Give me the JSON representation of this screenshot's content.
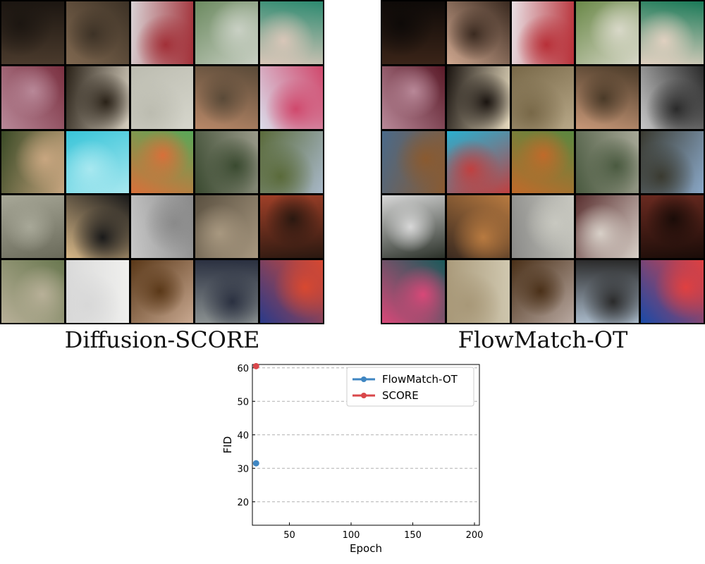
{
  "panels": [
    {
      "caption": "Diffusion-SCORE",
      "tiles": [
        [
          "#4a3a2c",
          "#1c1611"
        ],
        [
          "#806850",
          "#3d3226"
        ],
        [
          "#d8d2d4",
          "#a23038"
        ],
        [
          "#6c8a60",
          "#c9d0c4"
        ],
        [
          "#2c8a70",
          "#d8c6b8"
        ],
        [
          "#7a3040",
          "#b88898"
        ],
        [
          "#d8d0c0",
          "#2a2218"
        ],
        [
          "#d6d6cc",
          "#bcbcb0"
        ],
        [
          "#b88868",
          "#5a4a38"
        ],
        [
          "#dadcea",
          "#d0486c"
        ],
        [
          "#3a4a26",
          "#c8a680"
        ],
        [
          "#38c4d8",
          "#a8e8f0"
        ],
        [
          "#58a858",
          "#d8703a"
        ],
        [
          "#9a9a8a",
          "#3a4a30"
        ],
        [
          "#a8b8c8",
          "#5a6a3a"
        ],
        [
          "#6a6a5a",
          "#a8a898"
        ],
        [
          "#d8b888",
          "#1a1a1a"
        ],
        [
          "#c8c8c8",
          "#8a8a8a"
        ],
        [
          "#5a5040",
          "#a89880"
        ],
        [
          "#a04028",
          "#2a1810"
        ],
        [
          "#6a7850",
          "#b8b098"
        ],
        [
          "#f0f0ee",
          "#d8d8d8"
        ],
        [
          "#c8a890",
          "#5a3818"
        ],
        [
          "#8a9090",
          "#2a3040"
        ],
        [
          "#2a3a8a",
          "#d84830"
        ]
      ]
    },
    {
      "caption": "FlowMatch-OT",
      "tiles": [
        [
          "#3a2418",
          "#0e0a08"
        ],
        [
          "#d0a890",
          "#3a2a20"
        ],
        [
          "#e8e0e4",
          "#b83038"
        ],
        [
          "#6a8848",
          "#d8d8c8"
        ],
        [
          "#1a7a58",
          "#e0d0c0"
        ],
        [
          "#5a1a28",
          "#b88898"
        ],
        [
          "#e8dcc0",
          "#1a1410"
        ],
        [
          "#b8a888",
          "#786848"
        ],
        [
          "#c89878",
          "#4a3a28"
        ],
        [
          "#c8c8c8",
          "#2a2a2a"
        ],
        [
          "#4a6a8a",
          "#8a5a30"
        ],
        [
          "#2ab0d0",
          "#c04040"
        ],
        [
          "#5a8840",
          "#c06a2a"
        ],
        [
          "#a8a898",
          "#4a5a40"
        ],
        [
          "#8aa8c8",
          "#3a3a30"
        ],
        [
          "#2a3028",
          "#d8d8d8"
        ],
        [
          "#3a2a20",
          "#b87a40"
        ],
        [
          "#8a8a88",
          "#c8c8c0"
        ],
        [
          "#5a3030",
          "#d8d0c8"
        ],
        [
          "#6a2a20",
          "#1a0c08"
        ],
        [
          "#1a5a5a",
          "#d84878"
        ],
        [
          "#d0c8b0",
          "#a89878"
        ],
        [
          "#b8a8a0",
          "#4a3018"
        ],
        [
          "#a8b8c8",
          "#2a2a2a"
        ],
        [
          "#1a4aa8",
          "#e04040"
        ]
      ]
    }
  ],
  "chart_data": {
    "type": "line",
    "title": "",
    "xlabel": "Epoch",
    "ylabel": "FID",
    "xlim": [
      20,
      204
    ],
    "ylim": [
      13,
      61
    ],
    "xticks": [
      50,
      100,
      150,
      200
    ],
    "yticks": [
      20,
      30,
      40,
      50,
      60
    ],
    "grid": "y-dashed",
    "legend": "top-right",
    "series": [
      {
        "name": "FlowMatch-OT",
        "color": "#3f86c2",
        "x": [
          23
        ],
        "y": [
          31.5
        ]
      },
      {
        "name": "SCORE",
        "color": "#d9474a",
        "x": [
          23
        ],
        "y": [
          60.5
        ]
      }
    ]
  }
}
